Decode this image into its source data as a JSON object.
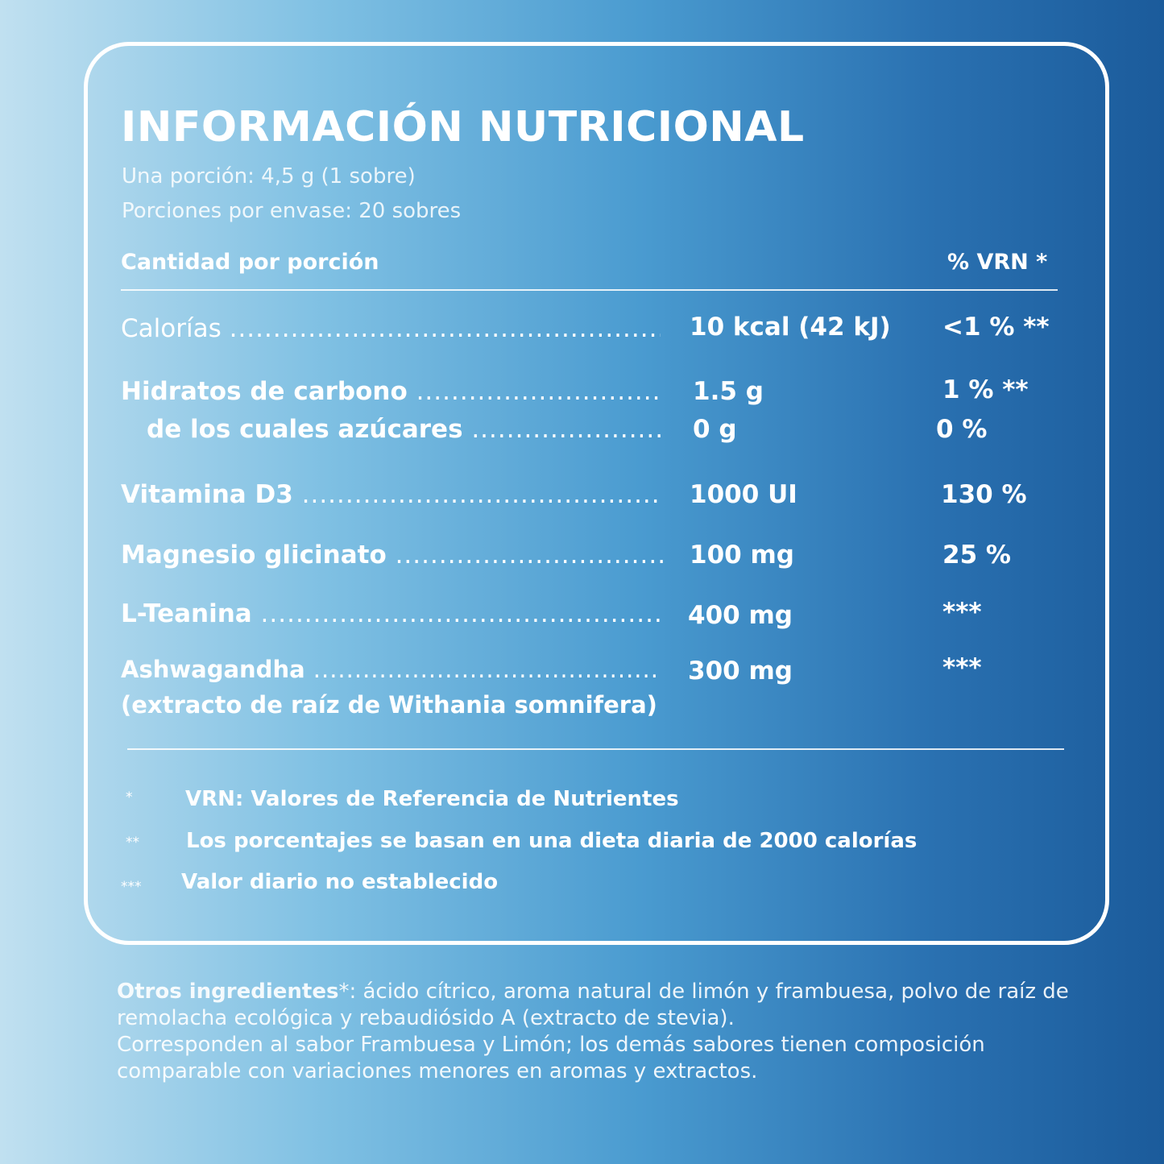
{
  "title": "INFORMACIÓN NUTRICIONAL",
  "serving": "Una porción: 4,5 g (1 sobre)",
  "servings_per_pack": "Porciones por envase: 20 sobres",
  "header": {
    "amount_label": "Cantidad por porción",
    "vrn_label": "% VRN *"
  },
  "rows": [
    {
      "name": "Calorías",
      "amount": "10 kcal (42 kJ)",
      "vrn": "<1 % **"
    },
    {
      "name": "Hidratos de carbono",
      "amount": "1.5 g",
      "vrn": "1 % **"
    },
    {
      "name": "de los cuales azúcares",
      "amount": "0 g",
      "vrn": "0 %"
    },
    {
      "name": "Vitamina D3",
      "amount": "1000 UI",
      "vrn": "130 %"
    },
    {
      "name": "Magnesio glicinato",
      "amount": "100 mg",
      "vrn": "25 %"
    },
    {
      "name": "L-Teanina",
      "amount": "400 mg",
      "vrn": "***"
    },
    {
      "name": "Ashwagandha",
      "name_sub": "(extracto de raíz de Withania somnifera)",
      "amount": "300 mg",
      "vrn": "***"
    }
  ],
  "dots": "....................................................................................................",
  "footnotes": [
    {
      "mark": "*",
      "text": "VRN: Valores de Referencia de Nutrientes"
    },
    {
      "mark": "**",
      "text": "Los porcentajes se basan en una dieta diaria de 2000 calorías"
    },
    {
      "mark": "***",
      "text": "Valor diario no establecido"
    }
  ],
  "other_ingredients": {
    "label": "Otros ingredientes",
    "mark": "*",
    "text": ": ácido cítrico, aroma natural de limón y frambuesa,  polvo de raíz de remolacha ecológica y rebaudiósido A (extracto de stevia).",
    "note": "Corresponden al sabor Frambuesa y Limón; los demás sabores tienen  composición comparable con variaciones menores en aromas y extractos."
  }
}
